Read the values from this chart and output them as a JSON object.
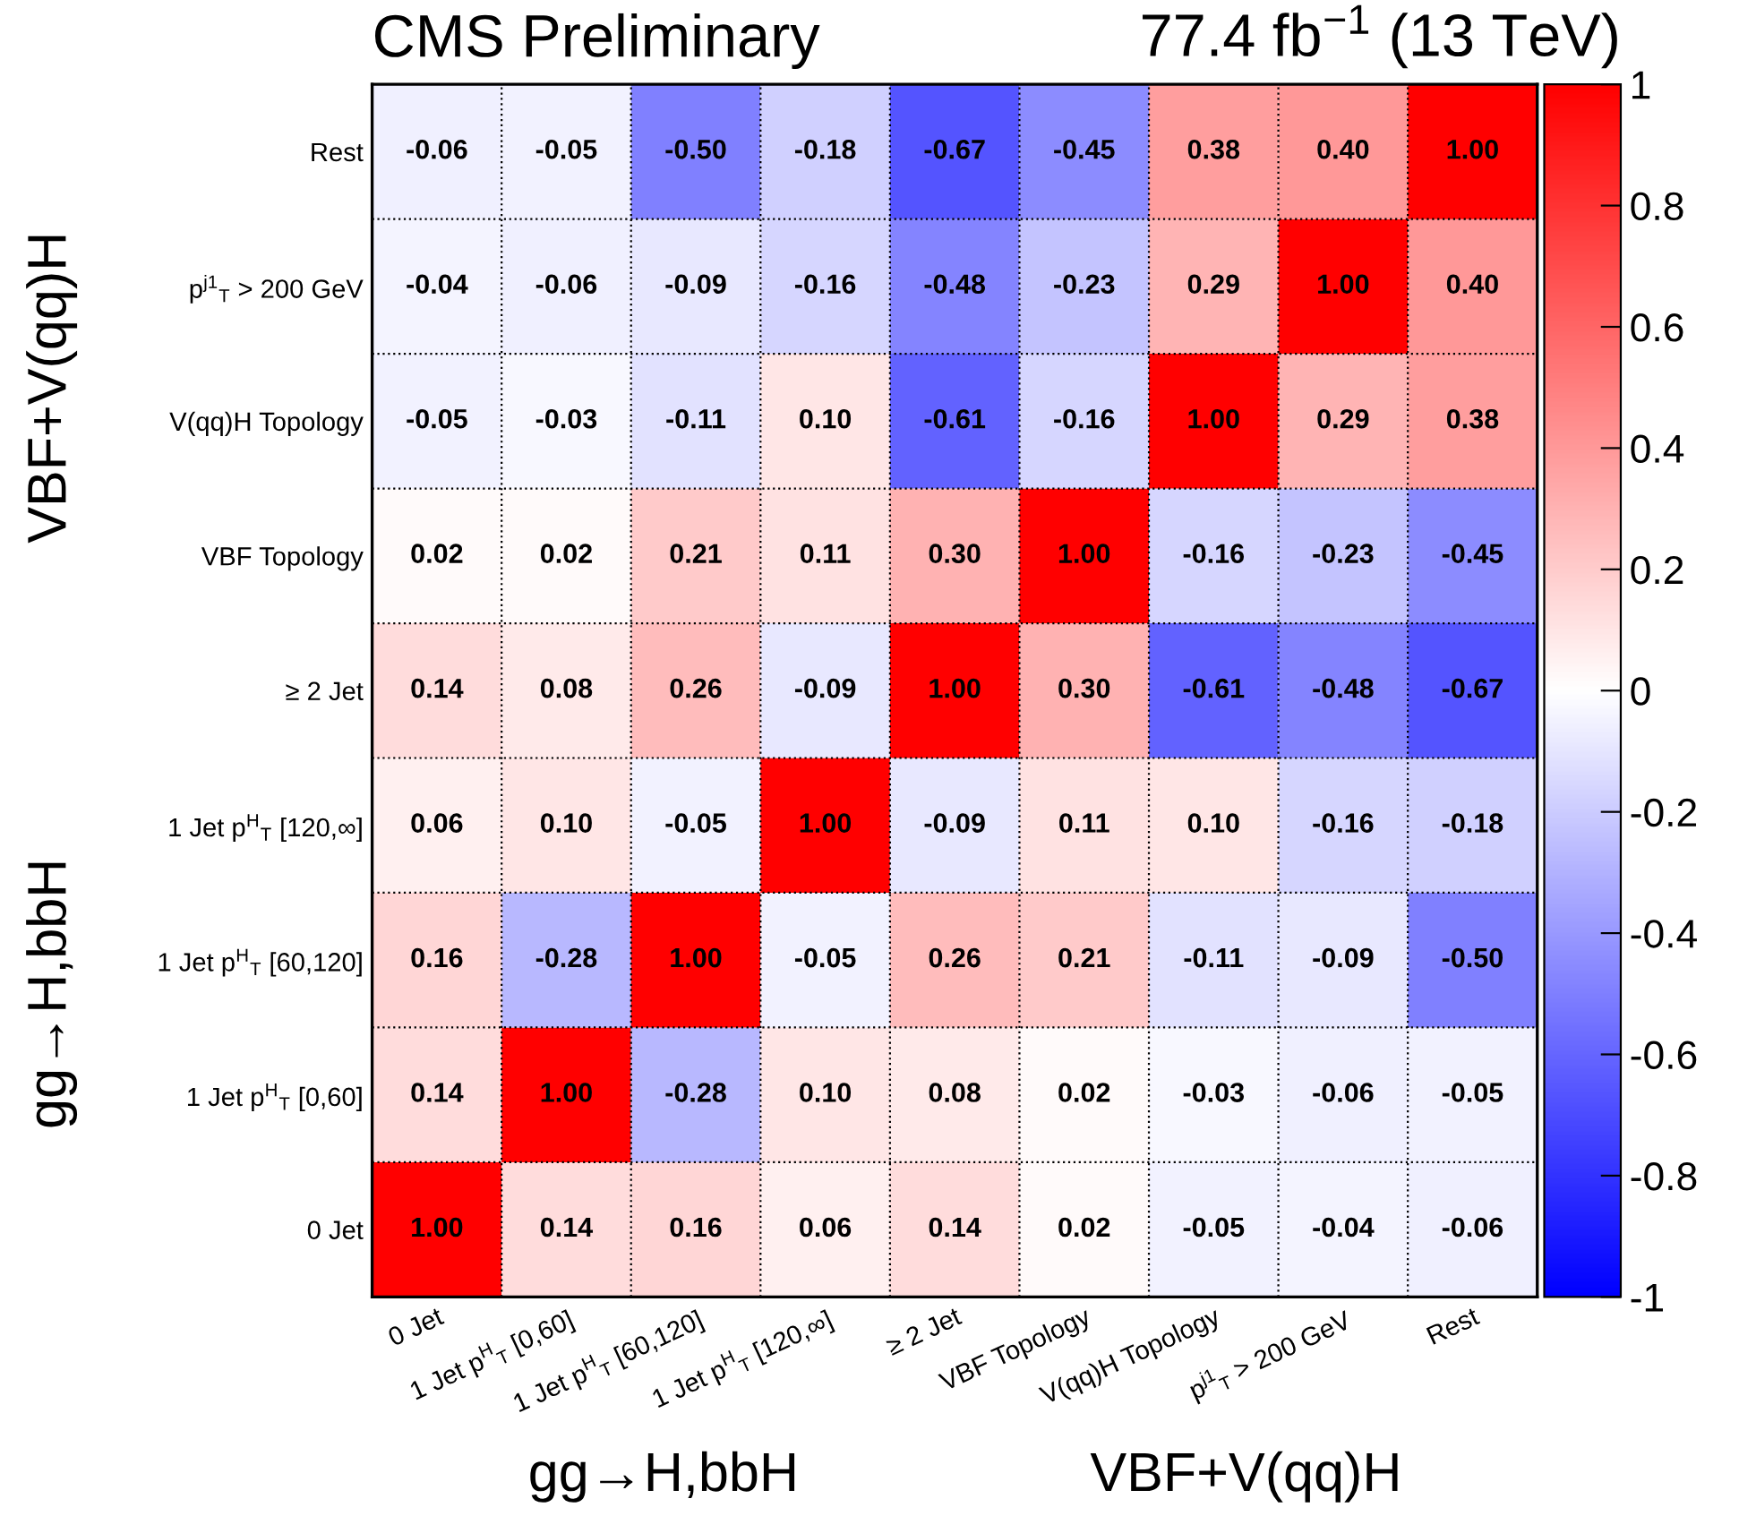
{
  "chart_data": {
    "type": "heatmap",
    "title": "CMS Preliminary",
    "subtitle": "77.4 fb$^{−1}$ (13 TeV)",
    "categories": [
      "0 Jet",
      "1 Jet p$^{H}$$_{T}$ [0,60]",
      "1 Jet p$^{H}$$_{T}$ [60,120]",
      "1 Jet p$^{H}$$_{T}$ [120,∞]",
      "≥ 2 Jet",
      "VBF Topology",
      "V(qq)H Topology",
      "p$^{j1}$$_{T}$ > 200 GeV",
      "Rest"
    ],
    "y_categories": [
      "Rest",
      "p$^{j1}$$_{T}$ > 200 GeV",
      "V(qq)H Topology",
      "VBF Topology",
      "≥ 2 Jet",
      "1 Jet p$^{H}$$_{T}$ [120,∞]",
      "1 Jet p$^{H}$$_{T}$ [60,120]",
      "1 Jet p$^{H}$$_{T}$ [0,60]",
      "0 Jet"
    ],
    "cells": [
      [
        -0.06,
        -0.05,
        -0.5,
        -0.18,
        -0.67,
        -0.45,
        0.38,
        0.4,
        1.0
      ],
      [
        -0.04,
        -0.06,
        -0.09,
        -0.16,
        -0.48,
        -0.23,
        0.29,
        1.0,
        0.4
      ],
      [
        -0.05,
        -0.03,
        -0.11,
        0.1,
        -0.61,
        -0.16,
        1.0,
        0.29,
        0.38
      ],
      [
        0.02,
        0.02,
        0.21,
        0.11,
        0.3,
        1.0,
        -0.16,
        -0.23,
        -0.45
      ],
      [
        0.14,
        0.08,
        0.26,
        -0.09,
        1.0,
        0.3,
        -0.61,
        -0.48,
        -0.67
      ],
      [
        0.06,
        0.1,
        -0.05,
        1.0,
        -0.09,
        0.11,
        0.1,
        -0.16,
        -0.18
      ],
      [
        0.16,
        -0.28,
        1.0,
        -0.05,
        0.26,
        0.21,
        -0.11,
        -0.09,
        -0.5
      ],
      [
        0.14,
        1.0,
        -0.28,
        0.1,
        0.08,
        0.02,
        -0.03,
        -0.06,
        -0.05
      ],
      [
        1.0,
        0.14,
        0.16,
        0.06,
        0.14,
        0.02,
        -0.05,
        -0.04,
        -0.06
      ]
    ],
    "cell_labels": [
      [
        "-0.06",
        "-0.05",
        "-0.50",
        "-0.18",
        "-0.67",
        "-0.45",
        "0.38",
        "0.40",
        "1.00"
      ],
      [
        "-0.04",
        "-0.06",
        "-0.09",
        "-0.16",
        "-0.48",
        "-0.23",
        "0.29",
        "1.00",
        "0.40"
      ],
      [
        "-0.05",
        "-0.03",
        "-0.11",
        "0.10",
        "-0.61",
        "-0.16",
        "1.00",
        "0.29",
        "0.38"
      ],
      [
        "0.02",
        "0.02",
        "0.21",
        "0.11",
        "0.30",
        "1.00",
        "-0.16",
        "-0.23",
        "-0.45"
      ],
      [
        "0.14",
        "0.08",
        "0.26",
        "-0.09",
        "1.00",
        "0.30",
        "-0.61",
        "-0.48",
        "-0.67"
      ],
      [
        "0.06",
        "0.10",
        "-0.05",
        "1.00",
        "-0.09",
        "0.11",
        "0.10",
        "-0.16",
        "-0.18"
      ],
      [
        "0.16",
        "-0.28",
        "1.00",
        "-0.05",
        "0.26",
        "0.21",
        "-0.11",
        "-0.09",
        "-0.50"
      ],
      [
        "0.14",
        "1.00",
        "-0.28",
        "0.10",
        "0.08",
        "0.02",
        "-0.03",
        "-0.06",
        "-0.05"
      ],
      [
        "1.00",
        "0.14",
        "0.16",
        "0.06",
        "0.14",
        "0.02",
        "-0.05",
        "-0.04",
        "-0.06"
      ]
    ],
    "clim": [
      -1,
      1
    ],
    "cticks": [
      -1,
      -0.8,
      -0.6,
      -0.4,
      -0.2,
      0,
      0.2,
      0.4,
      0.6,
      0.8,
      1
    ],
    "grid": true,
    "annotations": [
      "gg→H,bbH",
      "VBF+V(qq)H",
      "gg→H,bbH",
      "VBF+V(qq)H"
    ]
  }
}
